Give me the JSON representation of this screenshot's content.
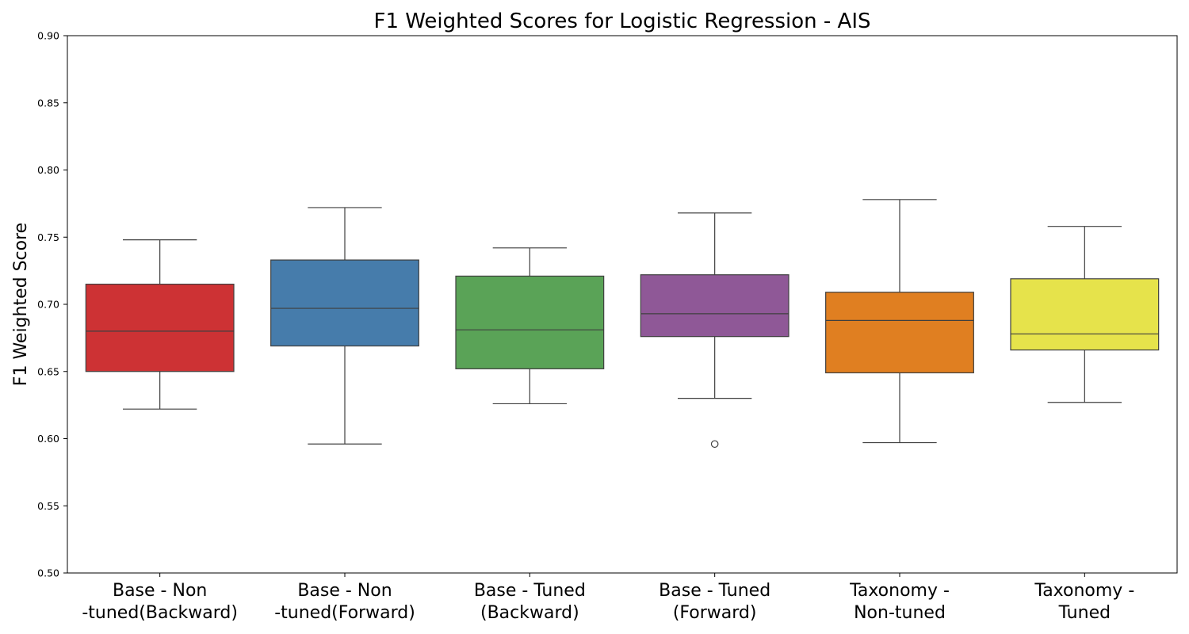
{
  "chart_data": {
    "type": "box",
    "title": "F1 Weighted Scores for Logistic Regression - AIS",
    "xlabel": "",
    "ylabel": "F1 Weighted Score",
    "ylim": [
      0.5,
      0.9
    ],
    "yticks": [
      "0.50",
      "0.55",
      "0.60",
      "0.65",
      "0.70",
      "0.75",
      "0.80",
      "0.85",
      "0.90"
    ],
    "grid": false,
    "categories": [
      [
        "Base - Non",
        "-tuned(Backward)"
      ],
      [
        "Base - Non",
        "-tuned(Forward)"
      ],
      [
        "Base - Tuned",
        "(Backward)"
      ],
      [
        "Base - Tuned",
        "(Forward)"
      ],
      [
        "Taxonomy -",
        "Non-tuned"
      ],
      [
        "Taxonomy -",
        "Tuned"
      ]
    ],
    "boxes": [
      {
        "whisker_low": 0.622,
        "q1": 0.65,
        "median": 0.68,
        "q3": 0.715,
        "whisker_high": 0.748,
        "outliers": [],
        "color": "#cd3234"
      },
      {
        "whisker_low": 0.596,
        "q1": 0.669,
        "median": 0.697,
        "q3": 0.733,
        "whisker_high": 0.772,
        "outliers": [],
        "color": "#467cab"
      },
      {
        "whisker_low": 0.626,
        "q1": 0.652,
        "median": 0.681,
        "q3": 0.721,
        "whisker_high": 0.742,
        "outliers": [],
        "color": "#5aa357"
      },
      {
        "whisker_low": 0.63,
        "q1": 0.676,
        "median": 0.693,
        "q3": 0.722,
        "whisker_high": 0.768,
        "outliers": [
          0.596
        ],
        "color": "#8f5897"
      },
      {
        "whisker_low": 0.597,
        "q1": 0.649,
        "median": 0.688,
        "q3": 0.709,
        "whisker_high": 0.778,
        "outliers": [],
        "color": "#e07f21"
      },
      {
        "whisker_low": 0.627,
        "q1": 0.666,
        "median": 0.678,
        "q3": 0.719,
        "whisker_high": 0.758,
        "outliers": [],
        "color": "#e6e34b"
      }
    ]
  }
}
